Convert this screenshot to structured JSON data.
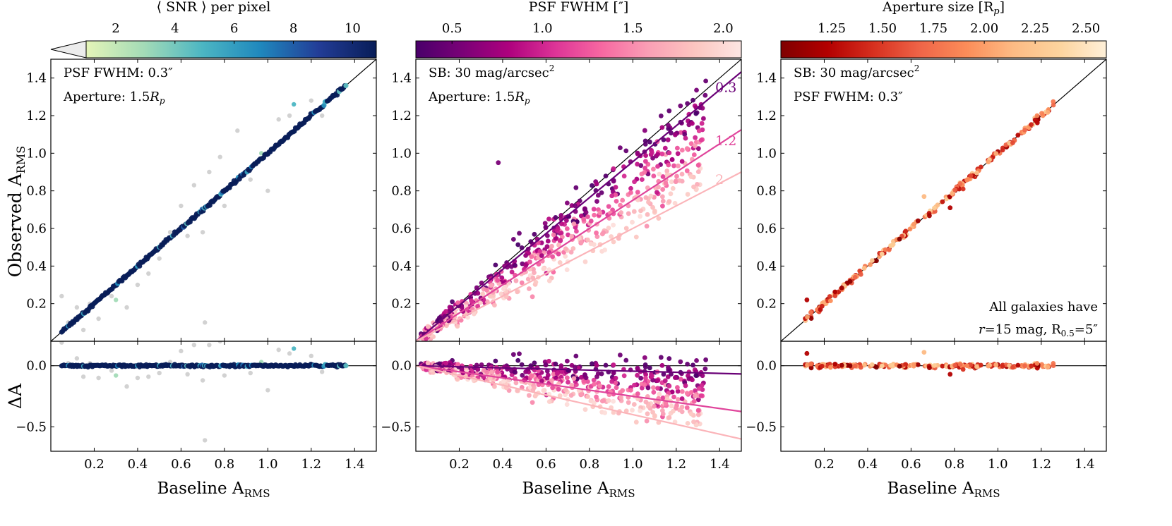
{
  "figure": {
    "x_label": "Baseline A",
    "x_label_sub": "RMS",
    "y_label_top": "Observed A",
    "y_label_top_sub": "RMS",
    "y_label_bottom": "ΔA"
  },
  "chart_data": [
    {
      "type": "scatter",
      "panel": "left",
      "colorbar": {
        "label": "⟨ SNR ⟩ per pixel",
        "ticks": [
          2,
          4,
          6,
          8,
          10
        ],
        "tick_labels": [
          "2",
          "4",
          "6",
          "8",
          "10"
        ],
        "range": [
          1,
          10.8
        ],
        "extend_min": true,
        "stops": [
          "#e5f5b8",
          "#a3dbb7",
          "#4cb6c3",
          "#1f88bd",
          "#233d97",
          "#081d58"
        ]
      },
      "annotations": [
        "PSF FWHM: 0.3″",
        "Aperture: 1.5R_p"
      ],
      "annotation_text": {
        "line1": "PSF FWHM: 0.3″",
        "line2_prefix": "Aperture: 1.5",
        "line2_var": "R",
        "line2_sub": "p"
      },
      "xlim": [
        0,
        1.5
      ],
      "ylim": [
        0,
        1.5
      ],
      "dlim": [
        -0.7,
        0.2
      ],
      "x_ticks": [
        0.2,
        0.4,
        0.6,
        0.8,
        1.0,
        1.2,
        1.4
      ],
      "x_tick_labels": [
        "0.2",
        "0.4",
        "0.6",
        "0.8",
        "1.0",
        "1.2",
        "1.4"
      ],
      "y_ticks": [
        0.2,
        0.4,
        0.6,
        0.8,
        1.0,
        1.2,
        1.4
      ],
      "y_tick_labels": [
        "0.2",
        "0.4",
        "0.6",
        "0.8",
        "1.0",
        "1.2",
        "1.4"
      ],
      "d_ticks": [
        0.0,
        -0.5
      ],
      "d_tick_labels": [
        "0.0",
        "−0.5"
      ],
      "main_points": {
        "x_range": [
          0.05,
          1.36
        ],
        "slope": 1.0,
        "scatter": 0.004,
        "count": 260,
        "color": "#081d58"
      },
      "outliers": [
        {
          "x": 0.05,
          "y": 0.24,
          "color": "#d0d0d0"
        },
        {
          "x": 0.08,
          "y": 0.1,
          "color": "#d0d0d0"
        },
        {
          "x": 0.12,
          "y": 0.18,
          "color": "#d0d0d0"
        },
        {
          "x": 0.15,
          "y": 0.06,
          "color": "#d0d0d0"
        },
        {
          "x": 0.18,
          "y": 0.2,
          "color": "#d0d0d0"
        },
        {
          "x": 0.22,
          "y": 0.12,
          "color": "#d0d0d0"
        },
        {
          "x": 0.28,
          "y": 0.24,
          "color": "#d0d0d0"
        },
        {
          "x": 0.3,
          "y": 0.22,
          "color": "#a3dbb7"
        },
        {
          "x": 0.35,
          "y": 0.18,
          "color": "#d0d0d0"
        },
        {
          "x": 0.4,
          "y": 0.3,
          "color": "#d0d0d0"
        },
        {
          "x": 0.45,
          "y": 0.36,
          "color": "#d0d0d0"
        },
        {
          "x": 0.5,
          "y": 0.44,
          "color": "#d0d0d0"
        },
        {
          "x": 0.55,
          "y": 0.58,
          "color": "#d0d0d0"
        },
        {
          "x": 0.6,
          "y": 0.72,
          "color": "#d0d0d0"
        },
        {
          "x": 0.63,
          "y": 0.56,
          "color": "#d0d0d0"
        },
        {
          "x": 0.66,
          "y": 0.83,
          "color": "#d0d0d0"
        },
        {
          "x": 0.7,
          "y": 0.58,
          "color": "#d0d0d0"
        },
        {
          "x": 0.71,
          "y": 0.1,
          "color": "#d0d0d0"
        },
        {
          "x": 0.73,
          "y": 0.9,
          "color": "#d0d0d0"
        },
        {
          "x": 0.78,
          "y": 0.98,
          "color": "#d0d0d0"
        },
        {
          "x": 0.8,
          "y": 0.72,
          "color": "#d0d0d0"
        },
        {
          "x": 0.86,
          "y": 1.12,
          "color": "#d0d0d0"
        },
        {
          "x": 0.92,
          "y": 0.86,
          "color": "#d0d0d0"
        },
        {
          "x": 0.97,
          "y": 1.0,
          "color": "#a3dbb7"
        },
        {
          "x": 1.0,
          "y": 0.8,
          "color": "#d0d0d0"
        },
        {
          "x": 1.05,
          "y": 1.18,
          "color": "#d0d0d0"
        },
        {
          "x": 1.1,
          "y": 1.2,
          "color": "#d0d0d0"
        },
        {
          "x": 1.12,
          "y": 1.26,
          "color": "#4cb6c3"
        },
        {
          "x": 1.2,
          "y": 1.28,
          "color": "#d0d0d0"
        },
        {
          "x": 1.25,
          "y": 1.2,
          "color": "#d0d0d0"
        }
      ]
    },
    {
      "type": "scatter",
      "panel": "middle",
      "colorbar": {
        "label": "PSF FWHM [″]",
        "ticks": [
          0.5,
          1.0,
          1.5,
          2.0
        ],
        "tick_labels": [
          "0.5",
          "1.0",
          "1.5",
          "2.0"
        ],
        "range": [
          0.3,
          2.1
        ],
        "extend_min": false,
        "stops": [
          "#49006a",
          "#7a0177",
          "#ae017e",
          "#dd3497",
          "#f768a1",
          "#fa9fb5",
          "#fcc5c0",
          "#fde6e3"
        ]
      },
      "annotations": [
        "SB: 30 mag/arcsec²",
        "Aperture: 1.5R_p"
      ],
      "annotation_text": {
        "line1": "SB: 30 mag/arcsec",
        "line1_sup": "2",
        "line2_prefix": "Aperture: 1.5",
        "line2_var": "R",
        "line2_sub": "p"
      },
      "xlim": [
        0,
        1.5
      ],
      "ylim": [
        0,
        1.5
      ],
      "dlim": [
        -0.7,
        0.2
      ],
      "x_ticks": [
        0.2,
        0.4,
        0.6,
        0.8,
        1.0,
        1.2,
        1.4
      ],
      "x_tick_labels": [
        "0.2",
        "0.4",
        "0.6",
        "0.8",
        "1.0",
        "1.2",
        "1.4"
      ],
      "y_ticks": [
        0.2,
        0.4,
        0.6,
        0.8,
        1.0,
        1.2,
        1.4
      ],
      "y_tick_labels": [
        "0.2",
        "0.4",
        "0.6",
        "0.8",
        "1.0",
        "1.2",
        "1.4"
      ],
      "d_ticks": [
        0.0,
        -0.5
      ],
      "d_tick_labels": [
        "0.0",
        "−0.5"
      ],
      "fit_lines": [
        {
          "fwhm": 0.3,
          "slope": 0.955,
          "label": "0.3",
          "color": "#6a0177"
        },
        {
          "fwhm": 1.2,
          "slope": 0.75,
          "label": "1.2",
          "color": "#e0449b"
        },
        {
          "fwhm": 2.0,
          "slope": 0.6,
          "label": "2",
          "color": "#fbb4b9"
        }
      ],
      "outlier": {
        "x": 0.38,
        "y": 0.95,
        "color": "#7a0177"
      }
    },
    {
      "type": "scatter",
      "panel": "right",
      "colorbar": {
        "label": "Aperture size [R_p]",
        "label_prefix": "Aperture size [R",
        "label_sub": "p",
        "label_suffix": "]",
        "ticks": [
          1.25,
          1.5,
          1.75,
          2.0,
          2.25,
          2.5
        ],
        "tick_labels": [
          "1.25",
          "1.50",
          "1.75",
          "2.00",
          "2.25",
          "2.50"
        ],
        "range": [
          1.0,
          2.6
        ],
        "extend_min": false,
        "stops": [
          "#7f0000",
          "#b30000",
          "#d7301f",
          "#ef6548",
          "#fc8d59",
          "#fdbb84",
          "#fdd49e",
          "#fef0d9"
        ]
      },
      "annotations": [
        "SB: 30 mag/arcsec²",
        "PSF FWHM: 0.3″",
        "All galaxies have",
        "r=15 mag, R0.5=5″"
      ],
      "annotation_text": {
        "line1": "SB: 30 mag/arcsec",
        "line1_sup": "2",
        "line2": "PSF FWHM: 0.3″",
        "note1": "All galaxies have",
        "note2_var": "r",
        "note2_mid": "=15 mag, R",
        "note2_sub": "0.5",
        "note2_end": "=5″"
      },
      "xlim": [
        0,
        1.5
      ],
      "ylim": [
        0,
        1.5
      ],
      "dlim": [
        -0.7,
        0.2
      ],
      "x_ticks": [
        0.2,
        0.4,
        0.6,
        0.8,
        1.0,
        1.2,
        1.4
      ],
      "x_tick_labels": [
        "0.2",
        "0.4",
        "0.6",
        "0.8",
        "1.0",
        "1.2",
        "1.4"
      ],
      "y_ticks": [
        0.2,
        0.4,
        0.6,
        0.8,
        1.0,
        1.2,
        1.4
      ],
      "y_tick_labels": [
        "0.2",
        "0.4",
        "0.6",
        "0.8",
        "1.0",
        "1.2",
        "1.4"
      ],
      "d_ticks": [
        0.0,
        -0.5
      ],
      "d_tick_labels": [
        "0.0",
        "−0.5"
      ],
      "main_points": {
        "x_range": [
          0.11,
          1.26
        ],
        "slope": 1.0,
        "scatter": 0.008,
        "count": 200
      },
      "outliers": [
        {
          "x": 0.12,
          "y": 0.22,
          "color": "#b30000"
        },
        {
          "x": 0.66,
          "y": 0.77,
          "color": "#fdbb84"
        },
        {
          "x": 0.78,
          "y": 0.71,
          "color": "#b30000"
        },
        {
          "x": 0.84,
          "y": 0.81,
          "color": "#d7301f"
        }
      ]
    }
  ]
}
